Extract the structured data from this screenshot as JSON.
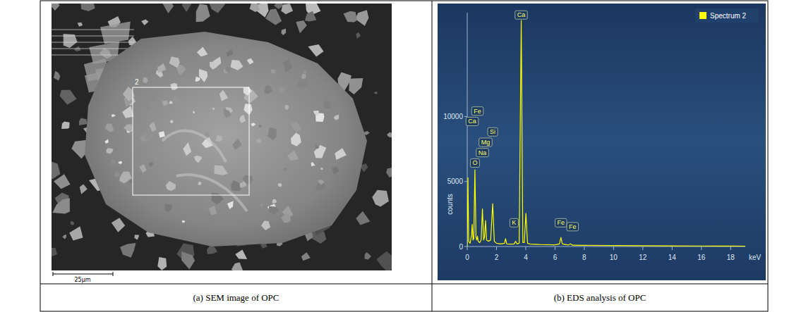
{
  "figure": {
    "captions": [
      "(a) SEM image of OPC",
      "(b) EDS analysis of OPC"
    ],
    "sem_image": {
      "region_label": "2",
      "scale_bar": "25μm"
    }
  },
  "chart_data": {
    "type": "line",
    "y_label": "counts",
    "x_label": "keV",
    "x": [
      0,
      0.05,
      0.1,
      0.15,
      0.2,
      0.25,
      0.3,
      0.34,
      0.4,
      0.45,
      0.525,
      0.6,
      0.65,
      0.7,
      0.75,
      0.85,
      0.95,
      1.04,
      1.12,
      1.18,
      1.25,
      1.32,
      1.45,
      1.6,
      1.74,
      1.85,
      2.0,
      2.3,
      2.55,
      2.62,
      2.7,
      3.0,
      3.2,
      3.31,
      3.4,
      3.55,
      3.69,
      3.8,
      3.9,
      4.01,
      4.12,
      4.3,
      5.0,
      6.0,
      6.3,
      6.4,
      6.5,
      6.9,
      7.06,
      7.2,
      8.0,
      10,
      12,
      14,
      16,
      18,
      19
    ],
    "series": [
      {
        "name": "Spectrum 2",
        "color": "#ffff00",
        "values": [
          0,
          5300,
          400,
          300,
          250,
          600,
          900,
          1700,
          500,
          600,
          5900,
          700,
          500,
          800,
          400,
          300,
          500,
          2900,
          500,
          700,
          2000,
          500,
          400,
          500,
          3300,
          400,
          250,
          200,
          250,
          600,
          200,
          180,
          200,
          400,
          200,
          250,
          17400,
          300,
          300,
          2550,
          250,
          180,
          150,
          130,
          200,
          700,
          200,
          120,
          200,
          100,
          90,
          70,
          60,
          50,
          40,
          30,
          25
        ]
      }
    ],
    "xlim": [
      0,
      19
    ],
    "xticks": [
      0,
      2,
      4,
      6,
      8,
      10,
      12,
      14,
      16,
      18
    ],
    "ylim": [
      0,
      18000
    ],
    "yticks": [
      0,
      5000,
      10000
    ],
    "legend": "top-right",
    "annotations": [
      {
        "text": "Ca",
        "x": 3.69,
        "y": 17500
      },
      {
        "text": "O",
        "x": 0.525,
        "y": 6100
      },
      {
        "text": "Na",
        "x": 1.04,
        "y": 6900
      },
      {
        "text": "Mg",
        "x": 1.25,
        "y": 7700
      },
      {
        "text": "Si",
        "x": 1.74,
        "y": 8500
      },
      {
        "text": "Ca",
        "x": 0.34,
        "y": 9300
      },
      {
        "text": "Fe",
        "x": 0.7,
        "y": 10100
      },
      {
        "text": "K",
        "x": 3.2,
        "y": 1500
      },
      {
        "text": "Fe",
        "x": 6.4,
        "y": 1500
      },
      {
        "text": "Fe",
        "x": 7.2,
        "y": 1200
      }
    ]
  }
}
